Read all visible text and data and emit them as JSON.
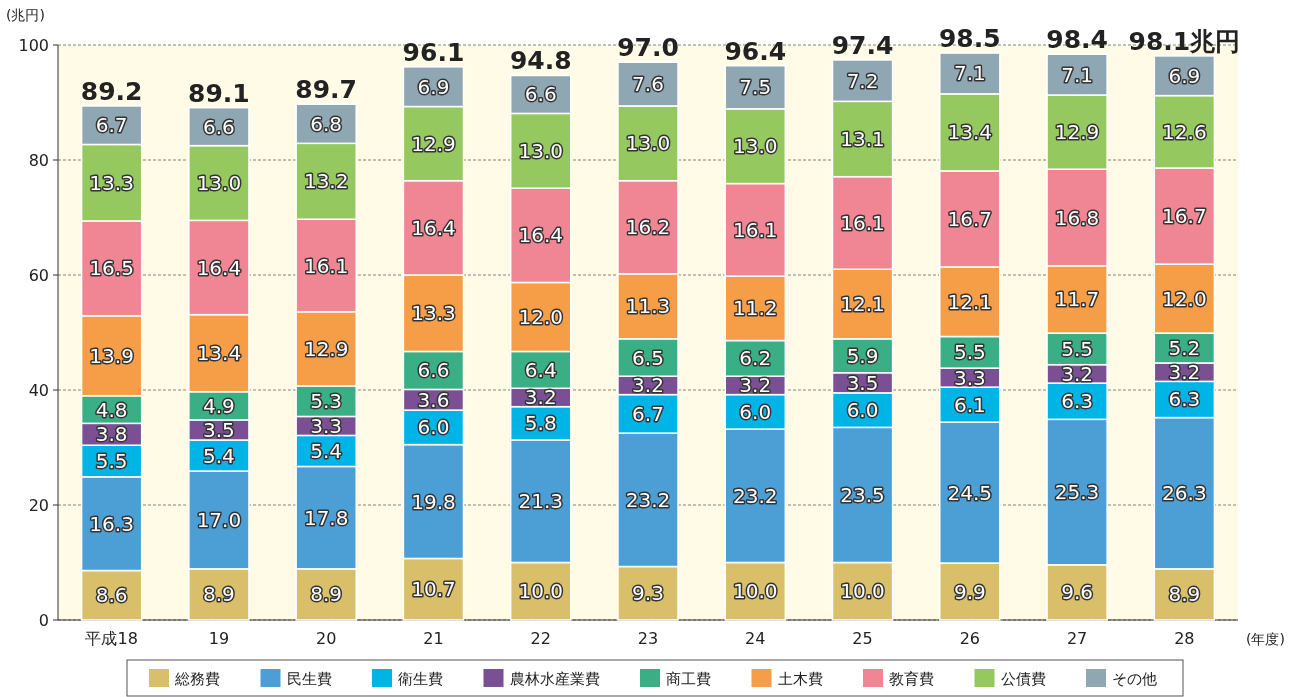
{
  "chart_data": {
    "type": "bar",
    "stacked": true,
    "ylabel": "(兆円)",
    "xlabel": "(年度)",
    "categories": [
      "平成18",
      "19",
      "20",
      "21",
      "22",
      "23",
      "24",
      "25",
      "26",
      "27",
      "28"
    ],
    "ylim": [
      0,
      100
    ],
    "yticks": [
      0,
      20,
      40,
      60,
      80,
      100
    ],
    "grid": "y",
    "legend": "bottom",
    "series": [
      {
        "name": "総務費",
        "color": "#d9bf6a",
        "values": [
          8.6,
          8.9,
          8.9,
          10.7,
          10.0,
          9.3,
          10.0,
          10.0,
          9.9,
          9.6,
          8.9
        ],
        "value_labels": [
          "8.6",
          "8.9",
          "8.9",
          "10.7",
          "10.0",
          "9.3",
          "10.0",
          "10.0",
          "9.9",
          "9.6",
          "8.9"
        ]
      },
      {
        "name": "民生費",
        "color": "#4b9fd5",
        "values": [
          16.3,
          17.0,
          17.8,
          19.8,
          21.3,
          23.2,
          23.2,
          23.5,
          24.5,
          25.3,
          26.3
        ],
        "value_labels": [
          "16.3",
          "17.0",
          "17.8",
          "19.8",
          "21.3",
          "23.2",
          "23.2",
          "23.5",
          "24.5",
          "25.3",
          "26.3"
        ]
      },
      {
        "name": "衛生費",
        "color": "#00b4e6",
        "values": [
          5.5,
          5.4,
          5.4,
          6.0,
          5.8,
          6.7,
          6.0,
          6.0,
          6.1,
          6.3,
          6.3
        ],
        "value_labels": [
          "5.5",
          "5.4",
          "5.4",
          "6.0",
          "5.8",
          "6.7",
          "6.0",
          "6.0",
          "6.1",
          "6.3",
          "6.3"
        ]
      },
      {
        "name": "農林水産業費",
        "color": "#7a4f94",
        "values": [
          3.8,
          3.5,
          3.3,
          3.6,
          3.2,
          3.2,
          3.2,
          3.5,
          3.3,
          3.2,
          3.2
        ],
        "value_labels": [
          "3.8",
          "3.5",
          "3.3",
          "3.6",
          "3.2",
          "3.2",
          "3.2",
          "3.5",
          "3.3",
          "3.2",
          "3.2"
        ]
      },
      {
        "name": "商工費",
        "color": "#3aae84",
        "values": [
          4.8,
          4.9,
          5.3,
          6.6,
          6.4,
          6.5,
          6.2,
          5.9,
          5.5,
          5.5,
          5.2
        ],
        "value_labels": [
          "4.8",
          "4.9",
          "5.3",
          "6.6",
          "6.4",
          "6.5",
          "6.2",
          "5.9",
          "5.5",
          "5.5",
          "5.2"
        ]
      },
      {
        "name": "土木費",
        "color": "#f59d47",
        "values": [
          13.9,
          13.4,
          12.9,
          13.3,
          12.0,
          11.3,
          11.2,
          12.1,
          12.1,
          11.7,
          12.0
        ],
        "value_labels": [
          "13.9",
          "13.4",
          "12.9",
          "13.3",
          "12.0",
          "11.3",
          "11.2",
          "12.1",
          "12.1",
          "11.7",
          "12.0"
        ]
      },
      {
        "name": "教育費",
        "color": "#f08594",
        "values": [
          16.5,
          16.4,
          16.1,
          16.4,
          16.4,
          16.2,
          16.1,
          16.1,
          16.7,
          16.8,
          16.7
        ],
        "value_labels": [
          "16.5",
          "16.4",
          "16.1",
          "16.4",
          "16.4",
          "16.2",
          "16.1",
          "16.1",
          "16.7",
          "16.8",
          "16.7"
        ]
      },
      {
        "name": "公債費",
        "color": "#95c85e",
        "values": [
          13.3,
          13.0,
          13.2,
          12.9,
          13.0,
          13.0,
          13.0,
          13.1,
          13.4,
          12.9,
          12.6
        ],
        "value_labels": [
          "13.3",
          "13.0",
          "13.2",
          "12.9",
          "13.0",
          "13.0",
          "13.0",
          "13.1",
          "13.4",
          "12.9",
          "12.6"
        ]
      },
      {
        "name": "その他",
        "color": "#8fa7b3",
        "values": [
          6.7,
          6.6,
          6.8,
          6.9,
          6.6,
          7.6,
          7.5,
          7.2,
          7.1,
          7.1,
          6.9
        ],
        "value_labels": [
          "6.7",
          "6.6",
          "6.8",
          "6.9",
          "6.6",
          "7.6",
          "7.5",
          "7.2",
          "7.1",
          "7.1",
          "6.9"
        ]
      }
    ],
    "totals": [
      "89.2",
      "89.1",
      "89.7",
      "96.1",
      "94.8",
      "97.0",
      "96.4",
      "97.4",
      "98.5",
      "98.4",
      "98.1兆円"
    ]
  }
}
